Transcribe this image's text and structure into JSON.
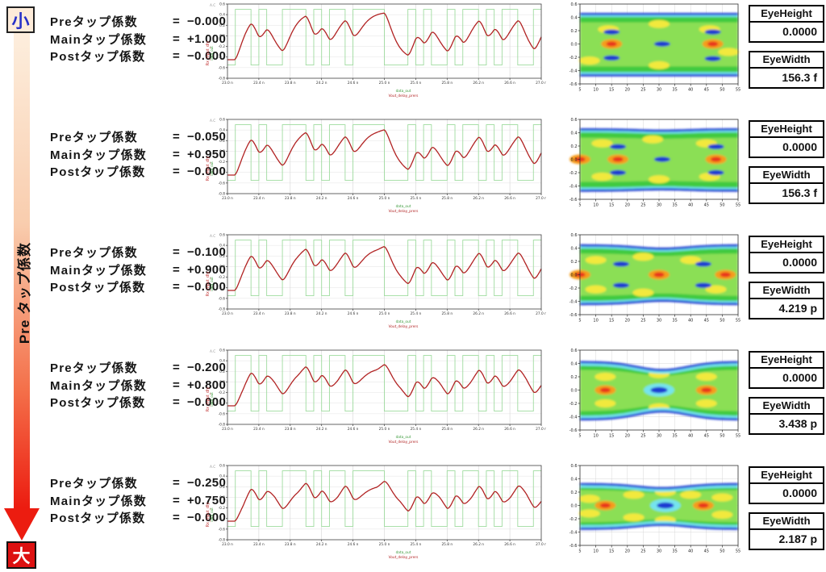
{
  "left_rail": {
    "top_label": "小",
    "bottom_label": "大",
    "arrow_label": "Pre タップ係数",
    "gradient_top": "#fdeedd",
    "gradient_bottom": "#ec1c10"
  },
  "equals_sign": "=",
  "coeff_labels": [
    "Preタップ係数",
    "Mainタップ係数",
    "Postタップ係数"
  ],
  "metrics": {
    "height_label": "EyeHeight",
    "width_label": "EyeWidth"
  },
  "rows": [
    {
      "pre": "−0.000",
      "main": "+1.000",
      "post": "−0.000",
      "eye_height": "0.0000",
      "eye_width": "156.3 f"
    },
    {
      "pre": "−0.050",
      "main": "+0.950",
      "post": "−0.000",
      "eye_height": "0.0000",
      "eye_width": "156.3 f"
    },
    {
      "pre": "−0.100",
      "main": "+0.900",
      "post": "−0.000",
      "eye_height": "0.0000",
      "eye_width": "4.219 p"
    },
    {
      "pre": "−0.200",
      "main": "+0.800",
      "post": "−0.000",
      "eye_height": "0.0000",
      "eye_width": "3.438 p"
    },
    {
      "pre": "−0.250",
      "main": "+0.750",
      "post": "−0.000",
      "eye_height": "0.0000",
      "eye_width": "2.187 p"
    }
  ],
  "chart_data": [
    {
      "type": "line",
      "title": "Rx transient waveform (one per tap setting)",
      "xlabel": "time",
      "ylabel": "Rx_input_dly",
      "corner_label": "A.C",
      "x_ticks": [
        "23.0 n",
        "23.4 n",
        "23.8 n",
        "24.2 n",
        "24.6 n",
        "25.0 n",
        "25.4 n",
        "25.8 n",
        "26.2 n",
        "26.6 n",
        "27.0 n"
      ],
      "y_ticks": [
        0.6,
        0.4,
        0.2,
        0.0,
        -0.2,
        -0.4,
        -0.6,
        -0.8
      ],
      "legend": [
        {
          "name": "data_out",
          "color": "#9fdb9f"
        },
        {
          "name": "Vout_delay_prers",
          "color": "#b12222"
        }
      ],
      "square_high": 0.5,
      "square_low": -0.55,
      "amplitude_scale": 0.45,
      "bits": [
        0,
        1,
        1,
        0,
        1,
        0,
        0,
        1,
        1,
        1,
        0,
        1,
        0,
        1,
        1,
        0,
        1,
        1,
        1,
        1,
        0,
        0,
        0,
        1,
        0,
        1,
        0,
        0,
        1,
        0,
        1,
        1,
        0,
        1,
        0,
        1,
        1,
        0,
        0,
        1
      ],
      "row_taps": [
        {
          "pre": 0.0,
          "main": 1.0
        },
        {
          "pre": -0.05,
          "main": 0.95
        },
        {
          "pre": -0.1,
          "main": 0.9
        },
        {
          "pre": -0.2,
          "main": 0.8
        },
        {
          "pre": -0.25,
          "main": 0.75
        }
      ]
    },
    {
      "type": "heatmap",
      "title": "eye diagram density (one per tap setting)",
      "x_ticks": [
        5,
        10,
        15,
        20,
        25,
        30,
        35,
        40,
        45,
        50,
        55
      ],
      "y_ticks": [
        0.6,
        0.4,
        0.2,
        0.0,
        -0.2,
        -0.4,
        -0.6
      ],
      "rows": [
        {
          "top": 0.45,
          "bottom": -0.47,
          "pinch": 0,
          "hotspots": [
            [
              15,
              0
            ],
            [
              47,
              0
            ]
          ],
          "lenses": [
            [
              15,
              0.18
            ],
            [
              15,
              -0.21
            ],
            [
              47,
              0.18
            ],
            [
              47,
              -0.22
            ],
            [
              31,
              0
            ]
          ],
          "yellows": [
            [
              14,
              0.22
            ],
            [
              30,
              0.3
            ],
            [
              46,
              0.22
            ],
            [
              8,
              -0.25
            ],
            [
              30,
              -0.32
            ],
            [
              52,
              -0.12
            ]
          ],
          "eye_center": null
        },
        {
          "top": 0.45,
          "bottom": -0.47,
          "pinch": 0.02,
          "hotspots": [
            [
              17,
              0
            ],
            [
              48,
              0
            ],
            [
              5,
              0
            ]
          ],
          "lenses": [
            [
              17,
              0.19
            ],
            [
              17,
              -0.2
            ],
            [
              48,
              0.19
            ],
            [
              48,
              -0.2
            ],
            [
              31,
              0
            ]
          ],
          "yellows": [
            [
              12,
              0.24
            ],
            [
              28,
              0.3
            ],
            [
              45,
              0.24
            ],
            [
              12,
              -0.26
            ],
            [
              30,
              -0.3
            ],
            [
              46,
              -0.26
            ]
          ],
          "eye_center": null
        },
        {
          "top": 0.44,
          "bottom": -0.44,
          "pinch": 0.05,
          "hotspots": [
            [
              5,
              0
            ],
            [
              30,
              0
            ],
            [
              51,
              0
            ]
          ],
          "lenses": [
            [
              18,
              0.16
            ],
            [
              18,
              -0.16
            ],
            [
              44,
              0.16
            ],
            [
              44,
              -0.16
            ]
          ],
          "yellows": [
            [
              10,
              0.22
            ],
            [
              25,
              0.27
            ],
            [
              40,
              0.22
            ],
            [
              10,
              -0.22
            ],
            [
              25,
              -0.27
            ],
            [
              48,
              -0.22
            ]
          ],
          "eye_center": null
        },
        {
          "top": 0.42,
          "bottom": -0.44,
          "pinch": 0.12,
          "hotspots": [
            [
              13,
              0
            ],
            [
              45,
              0
            ]
          ],
          "lenses": [],
          "yellows": [
            [
              13,
              0.2
            ],
            [
              13,
              -0.2
            ],
            [
              45,
              0.2
            ],
            [
              45,
              -0.2
            ],
            [
              30,
              0.24
            ],
            [
              30,
              -0.26
            ]
          ],
          "eye_center": [
            30,
            0
          ]
        },
        {
          "top": 0.32,
          "bottom": -0.35,
          "pinch": 0.06,
          "hotspots": [
            [
              13,
              0
            ],
            [
              44,
              0
            ]
          ],
          "lenses": [],
          "yellows": [
            [
              22,
              0.16
            ],
            [
              32,
              0.2
            ],
            [
              40,
              0.16
            ],
            [
              22,
              -0.18
            ],
            [
              32,
              -0.22
            ],
            [
              8,
              0.1
            ],
            [
              50,
              0.12
            ],
            [
              8,
              -0.12
            ],
            [
              50,
              -0.14
            ]
          ],
          "eye_center": [
            32,
            0
          ]
        }
      ]
    },
    {
      "type": "table",
      "columns": [
        "EyeHeight",
        "EyeWidth"
      ],
      "rows": [
        [
          "0.0000",
          "156.3 f"
        ],
        [
          "0.0000",
          "156.3 f"
        ],
        [
          "0.0000",
          "4.219 p"
        ],
        [
          "0.0000",
          "3.438 p"
        ],
        [
          "0.0000",
          "2.187 p"
        ]
      ]
    }
  ]
}
